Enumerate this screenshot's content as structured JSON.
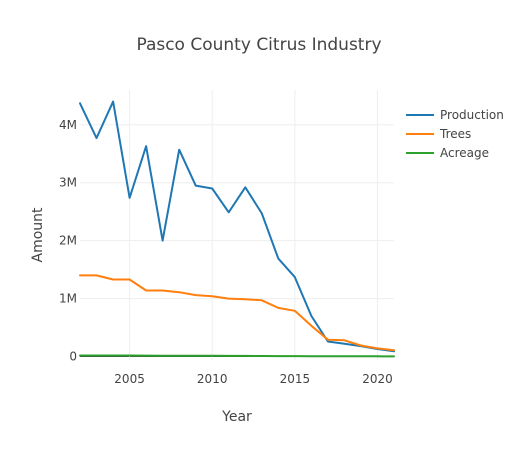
{
  "chart_data": {
    "type": "line",
    "title": "Pasco County Citrus Industry",
    "xlabel": "Year",
    "ylabel": "Amount",
    "x": [
      2002,
      2003,
      2004,
      2005,
      2006,
      2007,
      2008,
      2009,
      2010,
      2011,
      2012,
      2013,
      2014,
      2015,
      2016,
      2017,
      2018,
      2019,
      2020,
      2021
    ],
    "series": [
      {
        "name": "Production",
        "color": "#1f77b4",
        "values": [
          4370000,
          3770000,
          4400000,
          2740000,
          3630000,
          2000000,
          3570000,
          2950000,
          2900000,
          2490000,
          2920000,
          2470000,
          1690000,
          1370000,
          700000,
          260000,
          220000,
          180000,
          130000,
          90000
        ]
      },
      {
        "name": "Trees",
        "color": "#ff7f0e",
        "values": [
          1400000,
          1400000,
          1330000,
          1330000,
          1140000,
          1140000,
          1110000,
          1060000,
          1040000,
          1000000,
          990000,
          970000,
          840000,
          790000,
          530000,
          290000,
          280000,
          190000,
          140000,
          110000
        ]
      },
      {
        "name": "Acreage",
        "color": "#2ca02c",
        "values": [
          18000,
          18000,
          17000,
          17000,
          16000,
          15000,
          14000,
          13000,
          12000,
          11000,
          10000,
          9000,
          8000,
          7000,
          6000,
          5000,
          4000,
          3500,
          3000,
          2500
        ]
      }
    ],
    "xlim": [
      2002,
      2021
    ],
    "ylim": [
      -60000,
      4600000
    ],
    "x_ticks": [
      2005,
      2010,
      2015,
      2020
    ],
    "x_tick_labels": [
      "2005",
      "2010",
      "2015",
      "2020"
    ],
    "y_ticks": [
      0,
      1000000,
      2000000,
      3000000,
      4000000
    ],
    "y_tick_labels": [
      "0",
      "1M",
      "2M",
      "3M",
      "4M"
    ],
    "grid": true,
    "legend_position": "top-right"
  }
}
